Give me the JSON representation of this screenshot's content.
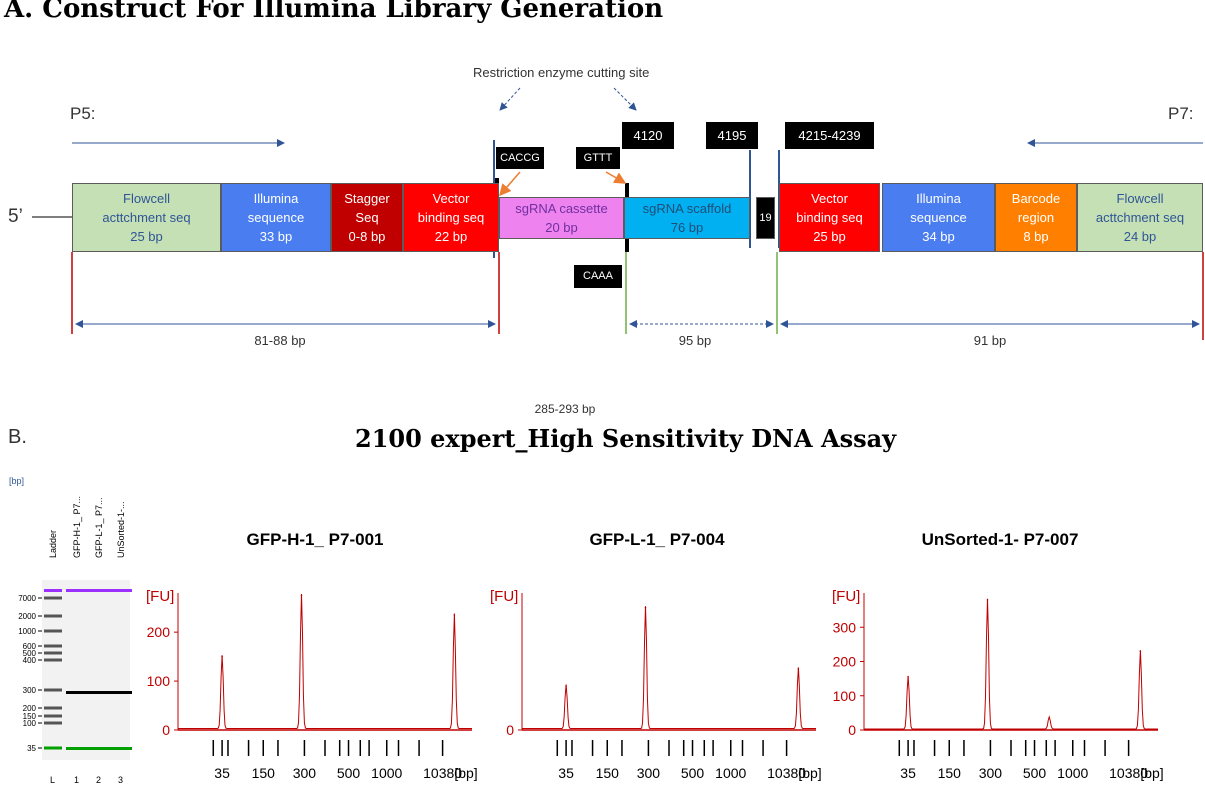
{
  "panel_a": {
    "title": "A. Construct For Illumina Library Generation",
    "cut_site_label": "Restriction enzyme cutting site",
    "p5_label": "P5:",
    "p7_label": "P7:",
    "five_prime": "5’",
    "segments": [
      {
        "label": "Flowcell\nacttchment seq\n25 bp",
        "color": "#c5e0b4",
        "text_color": "#2f5597"
      },
      {
        "label": "Illumina\nsequence\n33 bp",
        "color": "#4a7ef0",
        "text_color": "#ffffff"
      },
      {
        "label": "Stagger\nSeq\n0-8 bp",
        "color": "#c00000",
        "text_color": "#ffffff"
      },
      {
        "label": "Vector\nbinding seq\n22 bp",
        "color": "#ff0000",
        "text_color": "#ffffff"
      },
      {
        "label": "sgRNA cassette\n20 bp",
        "color": "#ee82ee",
        "text_color": "#7030a0"
      },
      {
        "label": "sgRNA scaffold\n76 bp",
        "color": "#00b0f0",
        "text_color": "#1f4e79"
      },
      {
        "label": "19",
        "color": "#000000",
        "text_color": "#ffffff"
      },
      {
        "label": "Vector\nbinding seq\n25 bp",
        "color": "#ff0000",
        "text_color": "#ffffff"
      },
      {
        "label": "Illumina\nsequence\n34 bp",
        "color": "#4a7ef0",
        "text_color": "#ffffff"
      },
      {
        "label": "Barcode\nregion\n8 bp",
        "color": "#ff8000",
        "text_color": "#ffffff"
      },
      {
        "label": "Flowcell\nacttchment seq\n24 bp",
        "color": "#c5e0b4",
        "text_color": "#2f5597"
      }
    ],
    "tags": {
      "caccg": "CACCG",
      "gttt": "GTTT",
      "caaa": "CAAA",
      "pos_4120": "4120",
      "pos_4195": "4195",
      "pos_4215": "4215-4239"
    },
    "dimensions": {
      "left": "81-88 bp",
      "middle": "95 bp",
      "right": "91 bp",
      "total": "285-293 bp"
    }
  },
  "panel_b": {
    "label": "B.",
    "title": "2100 expert_High Sensitivity DNA Assay",
    "gel": {
      "unit": "[bp]",
      "lanes": [
        "Ladder",
        "GFP-H-1_ P7...",
        "GFP-L-1_ P7...",
        "UnSorted-1-..."
      ],
      "lane_numbers": [
        "L",
        "1",
        "2",
        "3"
      ],
      "ladder_ticks": [
        "7000",
        "2000",
        "1000",
        "600",
        "500",
        "400",
        "300",
        "200",
        "150",
        "100",
        "35"
      ]
    },
    "colors": {
      "trace": "#c00000",
      "axis_label": "#c00000",
      "marker_upper": "#9b30ff",
      "marker_lower": "#00a000"
    }
  },
  "chart_data": [
    {
      "type": "line",
      "title": "GFP-H-1_ P7-001",
      "ylabel": "[FU]",
      "xlabel": "[bp]",
      "x_tick_labels": [
        "35",
        "150",
        "300",
        "500",
        "1000",
        "10380"
      ],
      "y_tick_labels": [
        "0",
        "100",
        "200"
      ],
      "ylim": [
        0,
        280
      ],
      "peaks": [
        {
          "size_bp": 35,
          "fu": 150
        },
        {
          "size_bp": 290,
          "fu": 275
        },
        {
          "size_bp": 10380,
          "fu": 235
        }
      ]
    },
    {
      "type": "line",
      "title": "GFP-L-1_ P7-004",
      "ylabel": "[FU]",
      "xlabel": "[bp]",
      "x_tick_labels": [
        "35",
        "150",
        "300",
        "500",
        "1000",
        "10380"
      ],
      "y_tick_labels": [
        "0"
      ],
      "ylim": [
        0,
        280
      ],
      "peaks": [
        {
          "size_bp": 35,
          "fu": 90
        },
        {
          "size_bp": 290,
          "fu": 250
        },
        {
          "size_bp": 10380,
          "fu": 125
        }
      ]
    },
    {
      "type": "line",
      "title": "UnSorted-1- P7-007",
      "ylabel": "[FU]",
      "xlabel": "[bp]",
      "x_tick_labels": [
        "35",
        "150",
        "300",
        "500",
        "1000",
        "10380"
      ],
      "y_tick_labels": [
        "0",
        "100",
        "200",
        "300"
      ],
      "ylim": [
        0,
        400
      ],
      "peaks": [
        {
          "size_bp": 35,
          "fu": 155
        },
        {
          "size_bp": 290,
          "fu": 380
        },
        {
          "size_bp": 700,
          "fu": 35
        },
        {
          "size_bp": 10380,
          "fu": 230
        }
      ]
    }
  ]
}
